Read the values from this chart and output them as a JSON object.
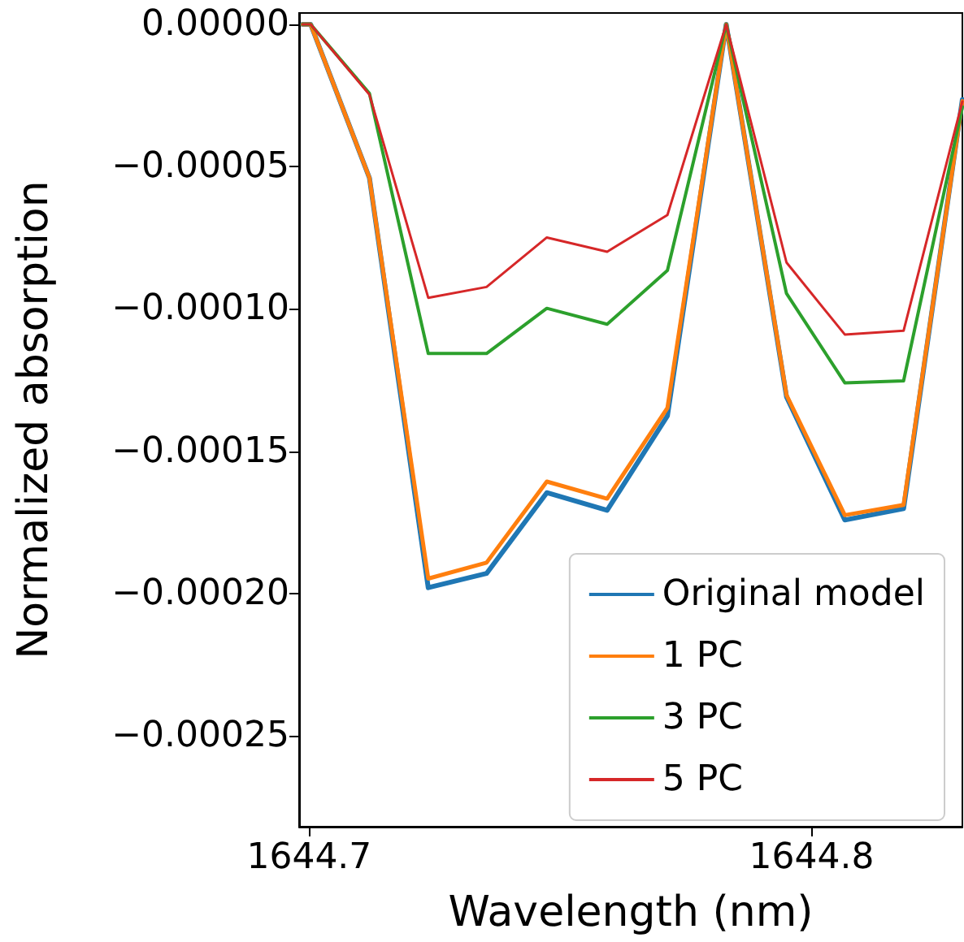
{
  "chart_data": {
    "type": "line",
    "xlabel": "Wavelength (nm)",
    "ylabel": "Normalized absorption",
    "x": [
      1644.6987,
      1644.7003,
      1644.712,
      1644.7237,
      1644.7353,
      1644.7473,
      1644.7593,
      1644.7713,
      1644.783,
      1644.795,
      1644.8066,
      1644.8183,
      1644.83
    ],
    "series": [
      {
        "name": "Original model",
        "color": "#1f77b4",
        "values": [
          0,
          0,
          -5.4e-05,
          -0.000198,
          -0.000193,
          -0.0001646,
          -0.0001708,
          -0.0001376,
          0,
          -0.0001309,
          -0.0001742,
          -0.0001702,
          -2.64e-05
        ]
      },
      {
        "name": "1 PC",
        "color": "#ff7f0e",
        "values": [
          0,
          0,
          -5.4e-05,
          -0.0001948,
          -0.0001892,
          -0.0001607,
          -0.0001667,
          -0.0001348,
          0,
          -0.0001303,
          -0.0001725,
          -0.0001689,
          -2.7e-05
        ]
      },
      {
        "name": "3 PC",
        "color": "#2ca02c",
        "values": [
          0,
          0,
          -2.43e-05,
          -0.0001157,
          -0.0001157,
          -9.98e-05,
          -0.0001054,
          -8.65e-05,
          0,
          -9.46e-05,
          -0.000126,
          -0.0001253,
          -2.9e-05
        ]
      },
      {
        "name": "5 PC",
        "color": "#d62728",
        "values": [
          0,
          0,
          -2.47e-05,
          -9.61e-05,
          -9.23e-05,
          -7.49e-05,
          -7.99e-05,
          -6.7e-05,
          0,
          -8.37e-05,
          -0.000109,
          -0.0001077,
          -2.71e-05
        ]
      }
    ],
    "xlim": [
      1644.698,
      1644.83
    ],
    "xticks": [
      1644.7,
      1644.8
    ],
    "ylim": [
      -0.000282,
      4e-06
    ],
    "yticks": [
      {
        "value": 0,
        "label": "0.00000"
      },
      {
        "value": -5e-05,
        "label": "−0.00005"
      },
      {
        "value": -0.0001,
        "label": "−0.00010"
      },
      {
        "value": -0.00015,
        "label": "−0.00015"
      },
      {
        "value": -0.0002,
        "label": "−0.00020"
      },
      {
        "value": -0.00025,
        "label": "−0.00025"
      }
    ],
    "grid": false,
    "legend": "bottom right",
    "marker": "none",
    "line_style": "solid"
  }
}
